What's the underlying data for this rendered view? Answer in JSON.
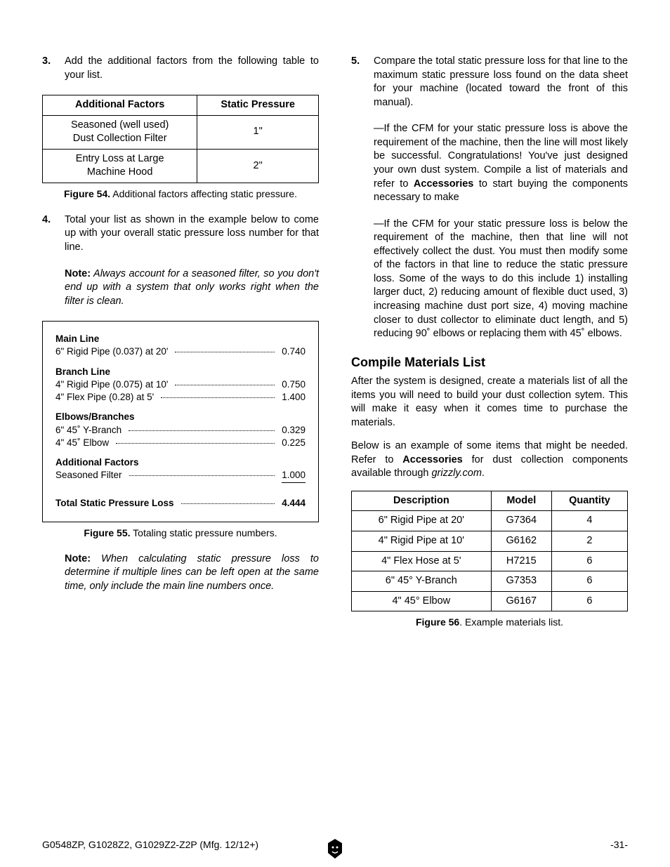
{
  "left": {
    "step3": {
      "num": "3.",
      "text": "Add the additional factors from the following table to your list."
    },
    "table54": {
      "headers": [
        "Additional Factors",
        "Static Pressure"
      ],
      "rows": [
        {
          "c1a": "Seasoned (well used)",
          "c1b": "Dust Collection Filter",
          "c2": "1\""
        },
        {
          "c1a": "Entry Loss at Large",
          "c1b": "Machine Hood",
          "c2": "2\""
        }
      ],
      "caption_label": "Figure 54.",
      "caption_text": " Additional factors affecting static pressure."
    },
    "step4": {
      "num": "4.",
      "text": "Total your list as shown in the example below to come up with your overall static pressure loss number for that line."
    },
    "note1": {
      "label": "Note:",
      "text": " Always account for a seasoned filter, so you don't end up with a system that only works right when the filter is clean."
    },
    "calc": {
      "sections": [
        {
          "title": "Main Line",
          "rows": [
            {
              "label": "6\" Rigid Pipe (0.037) at 20'",
              "val": "0.740"
            }
          ]
        },
        {
          "title": "Branch Line",
          "rows": [
            {
              "label": "4\" Rigid Pipe (0.075) at 10'",
              "val": "0.750"
            },
            {
              "label": "4\" Flex Pipe (0.28) at 5'",
              "val": "1.400"
            }
          ]
        },
        {
          "title": "Elbows/Branches",
          "rows": [
            {
              "label": "6\" 45˚ Y-Branch",
              "val": "0.329"
            },
            {
              "label": "4\" 45˚ Elbow",
              "val": "0.225"
            }
          ]
        },
        {
          "title": "Additional Factors",
          "rows": [
            {
              "label": "Seasoned Filter",
              "val": "1.000",
              "underline": true
            }
          ]
        }
      ],
      "total_label": "Total Static Pressure Loss",
      "total_val": "4.444"
    },
    "fig55": {
      "label": "Figure 55.",
      "text": " Totaling static pressure numbers."
    },
    "note2": {
      "label": "Note:",
      "text": " When calculating static pressure loss to determine if multiple lines can be left open at the same time, only include the main line numbers once."
    }
  },
  "right": {
    "step5": {
      "num": "5.",
      "text": "Compare the total static pressure loss for that line to the maximum static pressure loss found on the data sheet for your machine (located toward the front of this manual)."
    },
    "bullet1": "—If the CFM for your static pressure loss is above the requirement of the machine, then the line will most likely be successful. Congratulations! You've just designed your own dust system. Compile a list of materials and refer to ",
    "bullet1_bold": "Accessories",
    "bullet1_end": " to start buying the components necessary to make",
    "bullet2": "—If the CFM for your static pressure loss is below the requirement of the machine, then that line will not effectively collect the dust. You must then modify some of the factors in that line to reduce the static pressure loss. Some of the ways to do this include 1) installing larger duct, 2) reducing amount of flexible duct used, 3) increasing machine dust port size, 4) moving machine closer to dust collector to eliminate duct length, and 5) reducing 90˚ elbows or replacing them with 45˚ elbows.",
    "heading": "Compile Materials List",
    "para1": "After the system is designed, create a materials list of all the items you will need to build your dust collection sytem. This will make it easy when it comes time to purchase the materials.",
    "para2a": "Below is an example of some items that might be needed. Refer to ",
    "para2_bold": "Accessories",
    "para2b": " for dust collection components available through ",
    "para2_italic": "grizzly.com",
    "para2c": ".",
    "table56": {
      "headers": [
        "Description",
        "Model",
        "Quantity"
      ],
      "rows": [
        [
          "6\" Rigid Pipe at 20'",
          "G7364",
          "4"
        ],
        [
          "4\" Rigid Pipe at 10'",
          "G6162",
          "2"
        ],
        [
          "4\" Flex Hose at 5'",
          "H7215",
          "6"
        ],
        [
          "6\" 45° Y-Branch",
          "G7353",
          "6"
        ],
        [
          "4\" 45° Elbow",
          "G6167",
          "6"
        ]
      ],
      "caption_label": "Figure 56",
      "caption_text": ". Example materials list."
    }
  },
  "footer": {
    "left": "G0548ZP, G1028Z2, G1029Z2-Z2P (Mfg. 12/12+)",
    "right": "-31-"
  }
}
